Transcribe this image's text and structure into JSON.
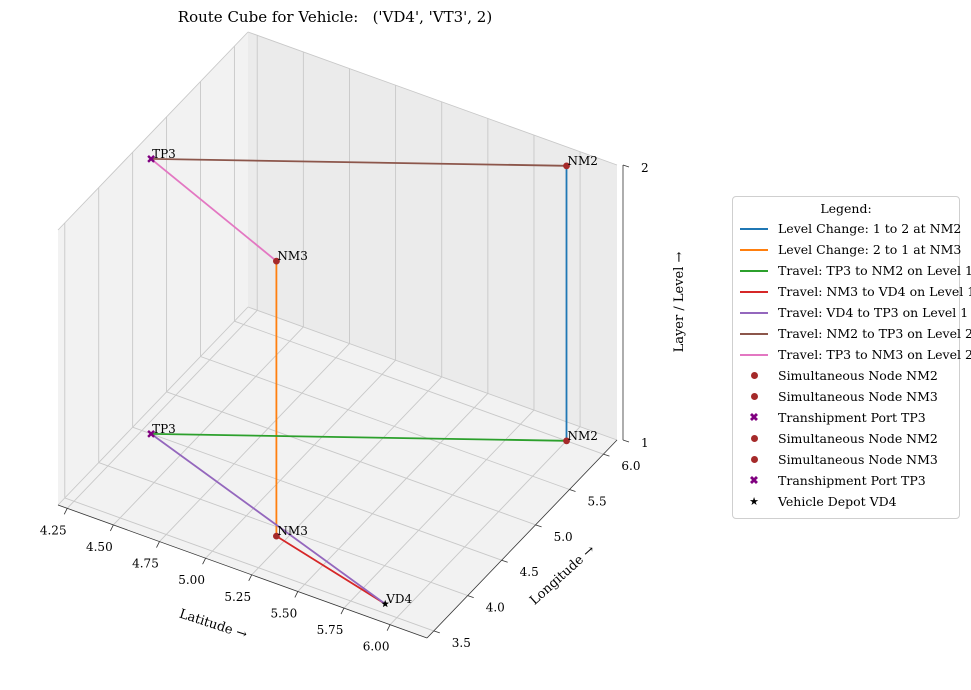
{
  "chart_data": {
    "type": "line",
    "title": "Route Cube for Vehicle:   ('VD4', 'VT3', 2)",
    "xlabel": "Latitude →",
    "ylabel": "Longitude →",
    "zlabel": "Layer / Level →",
    "xlim": [
      4.2,
      6.2
    ],
    "ylim": [
      3.4,
      6.2
    ],
    "zlim": [
      1,
      2
    ],
    "x_ticks": [
      "4.25",
      "4.50",
      "4.75",
      "5.00",
      "5.25",
      "5.50",
      "5.75",
      "6.00"
    ],
    "y_ticks": [
      "3.5",
      "4.0",
      "4.5",
      "5.0",
      "5.5",
      "6.0"
    ],
    "z_ticks": [
      "1",
      "2"
    ],
    "grid": true,
    "legend_title": "Legend:",
    "legend_position": "right",
    "series": [
      {
        "name": "Level Change: 1 to 2 at NM2",
        "color": "#1f77b4",
        "points": [
          [
            6.0,
            6.0,
            1
          ],
          [
            6.0,
            6.0,
            2
          ]
        ]
      },
      {
        "name": "Level Change: 2 to 1 at NM3",
        "color": "#ff7f0e",
        "points": [
          [
            5.2,
            3.9,
            2
          ],
          [
            5.2,
            3.9,
            1
          ]
        ]
      },
      {
        "name": "Travel: TP3 to NM2 on Level 1",
        "color": "#2ca02c",
        "points": [
          [
            4.3,
            4.5,
            1
          ],
          [
            6.0,
            6.0,
            1
          ]
        ]
      },
      {
        "name": "Travel: NM3 to VD4 on Level 1",
        "color": "#d62728",
        "points": [
          [
            5.2,
            3.9,
            1
          ],
          [
            5.9,
            3.6,
            1
          ]
        ]
      },
      {
        "name": "Travel: VD4 to TP3 on Level 1",
        "color": "#9467bd",
        "points": [
          [
            5.9,
            3.6,
            1
          ],
          [
            4.3,
            4.5,
            1
          ]
        ]
      },
      {
        "name": "Travel: NM2 to TP3 on Level 2",
        "color": "#8c564b",
        "points": [
          [
            6.0,
            6.0,
            2
          ],
          [
            4.3,
            4.5,
            2
          ]
        ]
      },
      {
        "name": "Travel: TP3 to NM3 on Level 2",
        "color": "#e377c2",
        "points": [
          [
            4.3,
            4.5,
            2
          ],
          [
            5.2,
            3.9,
            2
          ]
        ]
      }
    ],
    "markers": [
      {
        "name": "Simultaneous Node NM2",
        "label": "NM2",
        "shape": "circle",
        "color": "#a52a2a",
        "point": [
          6.0,
          6.0,
          1
        ]
      },
      {
        "name": "Simultaneous Node NM3",
        "label": "NM3",
        "shape": "circle",
        "color": "#a52a2a",
        "point": [
          5.2,
          3.9,
          1
        ]
      },
      {
        "name": "Transhipment Port TP3",
        "label": "TP3",
        "shape": "x",
        "color": "#800080",
        "point": [
          4.3,
          4.5,
          1
        ]
      },
      {
        "name": "Simultaneous Node NM2",
        "label": "NM2",
        "shape": "circle",
        "color": "#a52a2a",
        "point": [
          6.0,
          6.0,
          2
        ]
      },
      {
        "name": "Simultaneous Node NM3",
        "label": "NM3",
        "shape": "circle",
        "color": "#a52a2a",
        "point": [
          5.2,
          3.9,
          2
        ]
      },
      {
        "name": "Transhipment Port TP3",
        "label": "TP3",
        "shape": "x",
        "color": "#800080",
        "point": [
          4.3,
          4.5,
          2
        ]
      },
      {
        "name": "Vehicle Depot VD4",
        "label": "VD4",
        "shape": "star",
        "color": "#000000",
        "point": [
          5.9,
          3.6,
          1
        ]
      }
    ]
  }
}
